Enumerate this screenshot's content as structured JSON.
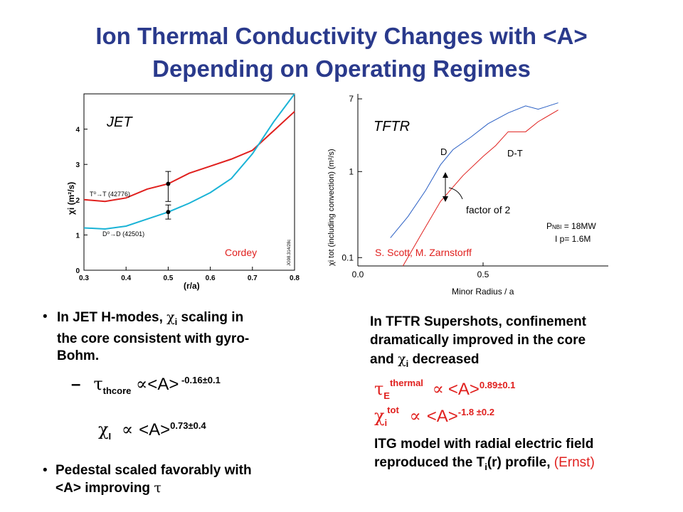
{
  "title": {
    "line1": "Ion Thermal Conductivity Changes with <A>",
    "line2": "Depending on Operating Regimes"
  },
  "colors": {
    "title": "#2a3a8c",
    "red": "#e0201e",
    "cyan": "#1ab3d6",
    "blue": "#2a5fc4"
  },
  "chart_data": [
    {
      "type": "line",
      "label": "JET",
      "xlabel": "(r/a)",
      "ylabel": "χi (m²/s)",
      "xlim": [
        0.3,
        0.8
      ],
      "ylim": [
        0,
        5
      ],
      "xticks": [
        "0.3",
        "0.4",
        "0.5",
        "0.6",
        "0.7",
        "0.8"
      ],
      "yticks": [
        "0",
        "1",
        "2",
        "3",
        "4"
      ],
      "series": [
        {
          "name": "T⁰→T (42776)",
          "color": "#e0201e",
          "x": [
            0.3,
            0.35,
            0.4,
            0.45,
            0.5,
            0.55,
            0.6,
            0.65,
            0.7,
            0.75,
            0.8
          ],
          "y": [
            2.0,
            1.95,
            2.05,
            2.3,
            2.45,
            2.75,
            2.95,
            3.15,
            3.4,
            3.95,
            4.5
          ]
        },
        {
          "name": "D⁰→D (42501)",
          "color": "#1ab3d6",
          "x": [
            0.3,
            0.35,
            0.4,
            0.45,
            0.5,
            0.55,
            0.6,
            0.65,
            0.7,
            0.75,
            0.8
          ],
          "y": [
            1.2,
            1.17,
            1.25,
            1.45,
            1.65,
            1.9,
            2.2,
            2.6,
            3.3,
            4.2,
            5.0
          ]
        }
      ],
      "error_bars": [
        {
          "x": 0.5,
          "y": 2.45,
          "low": 1.95,
          "high": 2.8
        },
        {
          "x": 0.5,
          "y": 1.65,
          "low": 1.45,
          "high": 1.85
        }
      ],
      "annotations": {
        "top": "JET",
        "credit": "Cordey",
        "side_id": "JG98.314/28c"
      }
    },
    {
      "type": "line",
      "label": "TFTR",
      "xlabel": "Minor Radius / a",
      "ylabel": "χi tot (including convection) (m²/s)",
      "yscale": "log",
      "xlim": [
        0.0,
        1.0
      ],
      "ylim": [
        0.08,
        8
      ],
      "xticks": [
        "0.0",
        "0.5"
      ],
      "yticks": [
        "0.1",
        "1",
        "7"
      ],
      "series": [
        {
          "name": "D",
          "color": "#2a5fc4",
          "x": [
            0.13,
            0.2,
            0.27,
            0.33,
            0.38,
            0.45,
            0.52,
            0.6,
            0.67,
            0.72,
            0.8
          ],
          "y": [
            0.17,
            0.3,
            0.6,
            1.2,
            1.8,
            2.5,
            3.6,
            4.8,
            5.8,
            5.3,
            6.3
          ]
        },
        {
          "name": "D-T",
          "color": "#e0201e",
          "x": [
            0.18,
            0.25,
            0.33,
            0.42,
            0.5,
            0.55,
            0.6,
            0.67,
            0.72,
            0.8
          ],
          "y": [
            0.08,
            0.18,
            0.45,
            0.9,
            1.5,
            2.0,
            2.9,
            2.9,
            3.8,
            5.2
          ]
        }
      ],
      "annotations": {
        "top": "TFTR",
        "factor": "factor of 2",
        "pnbi": "P",
        "pnbi_sub": "NBI",
        "pnbi_value": " = 18MW",
        "ip": "I p= 1.6M",
        "credit": "S. Scott, M. Zarnstorff"
      }
    }
  ],
  "left_text": {
    "bullet1_a": "In JET H-modes, ",
    "chi": "χ",
    "bullet1_i": "i",
    "bullet1_b": " scaling in",
    "bullet1_line2": "the core consistent with gyro-",
    "bullet1_line3": "Bohm.",
    "dash": "–",
    "tau": "τ",
    "tau_sub": "thcore",
    "prop": "∝",
    "avg": "<A>",
    "tau_exp": " -0.16±0.1",
    "chi2": "χ",
    "chi2_sub": "I",
    "prop2": "∝",
    "avg2": "<A>",
    "chi2_exp": "0.73±0.4",
    "bullet2": "Pedestal scaled favorably with",
    "bullet2_line2": "<A> improving ",
    "bullet2_tau": "τ"
  },
  "right_text": {
    "line1": "In TFTR Supershots, confinement",
    "line2": "dramatically improved in the core",
    "line3_a": "and ",
    "chi": "χ",
    "line3_i": "i",
    "line3_b": " decreased",
    "tau": "τ",
    "tau_sub": "E",
    "tau_sup": "thermal",
    "prop": "∝",
    "avg": "<A>",
    "tau_exp": "0.89±0.1",
    "chi2": "χ",
    "chi2_sub": "i",
    "chi2_sup": "tot",
    "prop2": "∝",
    "avg2": "<A>",
    "chi2_exp": "-1.8 ±0.2",
    "itg_line1": "ITG model with radial electric field",
    "itg_line2_a": "reproduced the T",
    "itg_line2_i": "i",
    "itg_line2_b": "(r) profile, ",
    "itg_line2_red": "(Ernst)"
  }
}
